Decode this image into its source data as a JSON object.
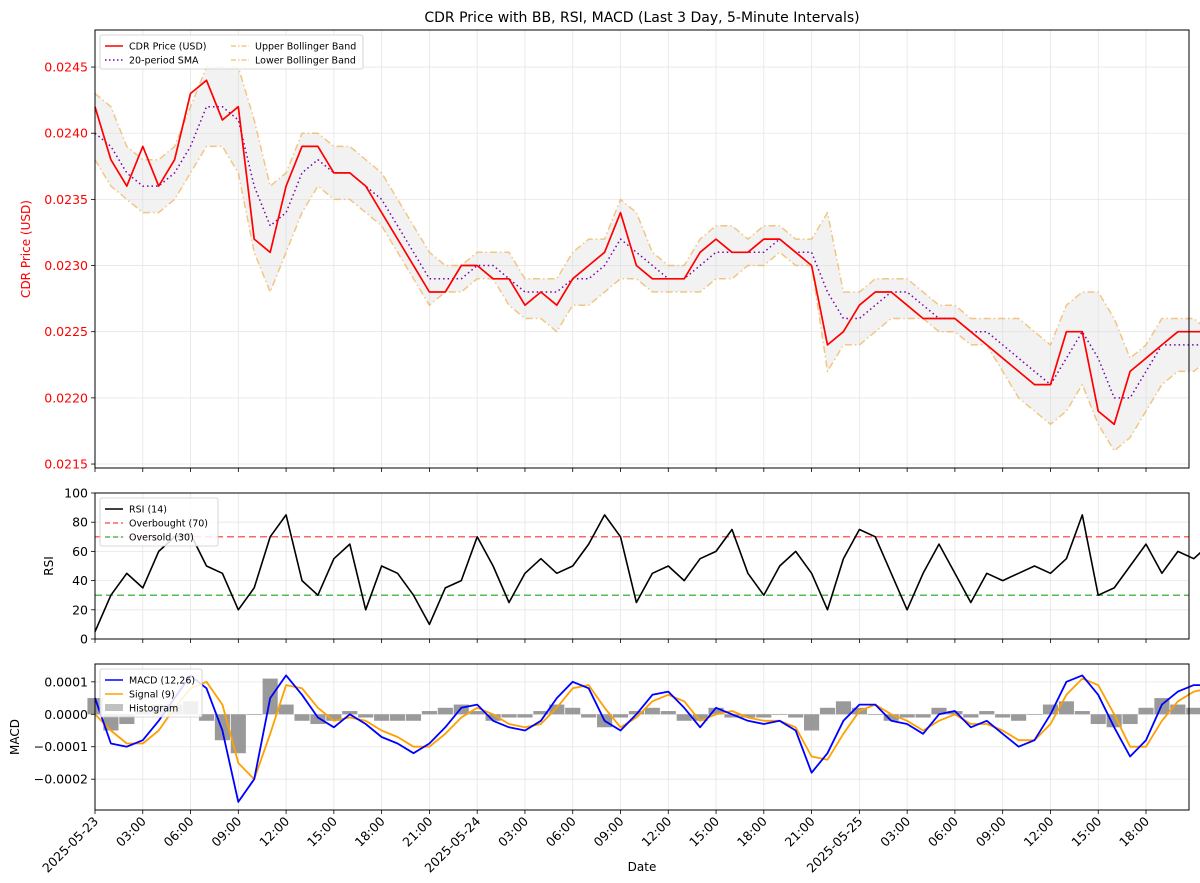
{
  "figure": {
    "title": "CDR Price with BB, RSI, MACD (Last 3 Day, 5-Minute Intervals)",
    "xlabel": "Date"
  },
  "chart_data": [
    {
      "type": "line",
      "panel": "price",
      "ylabel": "CDR Price (USD)",
      "ylim": [
        0.02147,
        0.02478
      ],
      "yticks": [
        "0.0215",
        "0.0220",
        "0.0225",
        "0.0230",
        "0.0235",
        "0.0240",
        "0.0245"
      ],
      "ytick_values": [
        0.0215,
        0.022,
        0.0225,
        0.023,
        0.0235,
        0.024,
        0.0245
      ],
      "ytick_color": "#ff0000",
      "grid": true,
      "legend_position": "top-left",
      "legend": [
        "CDR Price (USD)",
        "20-period SMA",
        "Upper Bollinger Band",
        "Lower Bollinger Band"
      ],
      "x_hours": [
        0,
        1,
        2,
        3,
        4,
        5,
        6,
        7,
        8,
        9,
        10,
        11,
        12,
        13,
        14,
        15,
        16,
        17,
        18,
        19,
        20,
        21,
        22,
        23,
        24,
        25,
        26,
        27,
        28,
        29,
        30,
        31,
        32,
        33,
        34,
        35,
        36,
        37,
        38,
        39,
        40,
        41,
        42,
        43,
        44,
        45,
        46,
        47,
        48,
        49,
        50,
        51,
        52,
        53,
        54,
        55,
        56,
        57,
        58,
        59,
        60,
        61,
        62,
        63,
        64,
        65,
        66,
        67,
        68,
        69,
        70
      ],
      "series": [
        {
          "name": "CDR Price (USD)",
          "color": "#ff0000",
          "style": "solid",
          "values": [
            0.0242,
            0.0238,
            0.0236,
            0.0239,
            0.0236,
            0.0238,
            0.0243,
            0.0244,
            0.0241,
            0.0242,
            0.0232,
            0.0231,
            0.0236,
            0.0239,
            0.0239,
            0.0237,
            0.0237,
            0.0236,
            0.0234,
            0.0232,
            0.023,
            0.0228,
            0.0228,
            0.023,
            0.023,
            0.0229,
            0.0229,
            0.0227,
            0.0228,
            0.0227,
            0.0229,
            0.023,
            0.0231,
            0.0234,
            0.023,
            0.0229,
            0.0229,
            0.0229,
            0.0231,
            0.0232,
            0.0231,
            0.0231,
            0.0232,
            0.0232,
            0.0231,
            0.023,
            0.0224,
            0.0225,
            0.0227,
            0.0228,
            0.0228,
            0.0227,
            0.0226,
            0.0226,
            0.0226,
            0.0225,
            0.0224,
            0.0223,
            0.0222,
            0.0221,
            0.0221,
            0.0225,
            0.0225,
            0.0219,
            0.0218,
            0.0222,
            0.0223,
            0.0224,
            0.0225,
            0.0225,
            0.0225
          ]
        },
        {
          "name": "20-period SMA",
          "color": "#7700aa",
          "style": "dotted",
          "values": [
            0.024,
            0.0239,
            0.0237,
            0.0236,
            0.0236,
            0.0237,
            0.0239,
            0.0242,
            0.0242,
            0.0241,
            0.0236,
            0.0233,
            0.0234,
            0.0237,
            0.0238,
            0.0237,
            0.0237,
            0.0236,
            0.0235,
            0.0233,
            0.0231,
            0.0229,
            0.0229,
            0.0229,
            0.023,
            0.023,
            0.0229,
            0.0228,
            0.0228,
            0.0228,
            0.0229,
            0.0229,
            0.023,
            0.0232,
            0.0231,
            0.023,
            0.0229,
            0.0229,
            0.023,
            0.0231,
            0.0231,
            0.0231,
            0.0231,
            0.0232,
            0.0231,
            0.0231,
            0.0228,
            0.0226,
            0.0226,
            0.0227,
            0.0228,
            0.0228,
            0.0227,
            0.0226,
            0.0226,
            0.0225,
            0.0225,
            0.0224,
            0.0223,
            0.0222,
            0.0221,
            0.0223,
            0.0225,
            0.0223,
            0.022,
            0.022,
            0.0222,
            0.0224,
            0.0224,
            0.0224,
            0.0224
          ]
        },
        {
          "name": "Upper Bollinger Band",
          "color": "#f0b050",
          "style": "dashdot",
          "values": [
            0.0243,
            0.0242,
            0.0239,
            0.0238,
            0.0238,
            0.0239,
            0.0242,
            0.0245,
            0.0245,
            0.0245,
            0.0241,
            0.0236,
            0.0237,
            0.024,
            0.024,
            0.0239,
            0.0239,
            0.0238,
            0.0237,
            0.0235,
            0.0233,
            0.0231,
            0.023,
            0.023,
            0.0231,
            0.0231,
            0.0231,
            0.0229,
            0.0229,
            0.0229,
            0.0231,
            0.0232,
            0.0232,
            0.0235,
            0.0234,
            0.0231,
            0.023,
            0.023,
            0.0232,
            0.0233,
            0.0233,
            0.0232,
            0.0233,
            0.0233,
            0.0232,
            0.0232,
            0.0234,
            0.0228,
            0.0228,
            0.0229,
            0.0229,
            0.0229,
            0.0228,
            0.0227,
            0.0227,
            0.0226,
            0.0226,
            0.0226,
            0.0226,
            0.0225,
            0.0224,
            0.0227,
            0.0228,
            0.0228,
            0.0226,
            0.0223,
            0.0224,
            0.0226,
            0.0226,
            0.0226,
            0.0225
          ]
        },
        {
          "name": "Lower Bollinger Band",
          "color": "#f0b050",
          "style": "dashdot",
          "values": [
            0.0238,
            0.0236,
            0.0235,
            0.0234,
            0.0234,
            0.0235,
            0.0237,
            0.0239,
            0.0239,
            0.0237,
            0.0231,
            0.0228,
            0.0231,
            0.0234,
            0.0236,
            0.0235,
            0.0235,
            0.0234,
            0.0233,
            0.0231,
            0.0229,
            0.0227,
            0.0228,
            0.0228,
            0.0229,
            0.0229,
            0.0227,
            0.0226,
            0.0226,
            0.0225,
            0.0227,
            0.0227,
            0.0228,
            0.0229,
            0.0229,
            0.0228,
            0.0228,
            0.0228,
            0.0228,
            0.0229,
            0.0229,
            0.023,
            0.023,
            0.0231,
            0.023,
            0.023,
            0.0222,
            0.0224,
            0.0224,
            0.0225,
            0.0226,
            0.0226,
            0.0226,
            0.0225,
            0.0225,
            0.0224,
            0.0224,
            0.0222,
            0.022,
            0.0219,
            0.0218,
            0.0219,
            0.0221,
            0.0218,
            0.0216,
            0.0217,
            0.0219,
            0.0221,
            0.0222,
            0.0222,
            0.0223
          ]
        }
      ]
    },
    {
      "type": "line",
      "panel": "rsi",
      "ylabel": "RSI",
      "ylim": [
        0,
        100
      ],
      "yticks": [
        "0",
        "20",
        "40",
        "60",
        "80",
        "100"
      ],
      "ytick_values": [
        0,
        20,
        40,
        60,
        80,
        100
      ],
      "grid": true,
      "legend_position": "top-left",
      "legend": [
        "RSI (14)",
        "Overbought (70)",
        "Oversold (30)"
      ],
      "x_hours": [
        0,
        1,
        2,
        3,
        4,
        5,
        6,
        7,
        8,
        9,
        10,
        11,
        12,
        13,
        14,
        15,
        16,
        17,
        18,
        19,
        20,
        21,
        22,
        23,
        24,
        25,
        26,
        27,
        28,
        29,
        30,
        31,
        32,
        33,
        34,
        35,
        36,
        37,
        38,
        39,
        40,
        41,
        42,
        43,
        44,
        45,
        46,
        47,
        48,
        49,
        50,
        51,
        52,
        53,
        54,
        55,
        56,
        57,
        58,
        59,
        60,
        61,
        62,
        63,
        64,
        65,
        66,
        67,
        68,
        69,
        70
      ],
      "series": [
        {
          "name": "RSI (14)",
          "color": "#000000",
          "style": "solid",
          "values": [
            5,
            30,
            45,
            35,
            60,
            70,
            72,
            50,
            45,
            20,
            35,
            70,
            85,
            40,
            30,
            55,
            65,
            20,
            50,
            45,
            30,
            10,
            35,
            40,
            70,
            50,
            25,
            45,
            55,
            45,
            50,
            65,
            85,
            70,
            25,
            45,
            50,
            40,
            55,
            60,
            75,
            45,
            30,
            50,
            60,
            45,
            20,
            55,
            75,
            70,
            45,
            20,
            45,
            65,
            45,
            25,
            45,
            40,
            45,
            50,
            45,
            55,
            85,
            30,
            35,
            50,
            65,
            45,
            60,
            55,
            65
          ]
        },
        {
          "name": "Overbought (70)",
          "color": "#ff6666",
          "style": "dashed",
          "values": [
            70,
            70
          ]
        },
        {
          "name": "Oversold (30)",
          "color": "#55bb55",
          "style": "dashed",
          "values": [
            30,
            30
          ]
        }
      ]
    },
    {
      "type": "line",
      "panel": "macd",
      "ylabel": "MACD",
      "ylim": [
        -0.000295,
        0.000155
      ],
      "yticks": [
        "−0.0002",
        "−0.0001",
        "0.0000",
        "0.0001"
      ],
      "ytick_values": [
        -0.0002,
        -0.0001,
        0,
        0.0001
      ],
      "grid": true,
      "legend_position": "top-left",
      "legend": [
        "MACD (12,26)",
        "Signal (9)",
        "Histogram"
      ],
      "x_hours": [
        0,
        1,
        2,
        3,
        4,
        5,
        6,
        7,
        8,
        9,
        10,
        11,
        12,
        13,
        14,
        15,
        16,
        17,
        18,
        19,
        20,
        21,
        22,
        23,
        24,
        25,
        26,
        27,
        28,
        29,
        30,
        31,
        32,
        33,
        34,
        35,
        36,
        37,
        38,
        39,
        40,
        41,
        42,
        43,
        44,
        45,
        46,
        47,
        48,
        49,
        50,
        51,
        52,
        53,
        54,
        55,
        56,
        57,
        58,
        59,
        60,
        61,
        62,
        63,
        64,
        65,
        66,
        67,
        68,
        69,
        70
      ],
      "series": [
        {
          "name": "MACD (12,26)",
          "color": "#0000ff",
          "style": "solid",
          "values": [
            5e-05,
            -9e-05,
            -0.0001,
            -8e-05,
            -2e-05,
            5e-05,
            0.00012,
            8e-05,
            -5e-05,
            -0.00027,
            -0.0002,
            5e-05,
            0.00012,
            6e-05,
            -1e-05,
            -4e-05,
            0.0,
            -3e-05,
            -7e-05,
            -9e-05,
            -0.00012,
            -9e-05,
            -4e-05,
            2e-05,
            3e-05,
            -2e-05,
            -4e-05,
            -5e-05,
            -2e-05,
            5e-05,
            0.0001,
            8e-05,
            -2e-05,
            -5e-05,
            0.0,
            6e-05,
            7e-05,
            2e-05,
            -4e-05,
            2e-05,
            0.0,
            -2e-05,
            -3e-05,
            -2e-05,
            -5e-05,
            -0.00018,
            -0.00012,
            -2e-05,
            3e-05,
            3e-05,
            -2e-05,
            -3e-05,
            -6e-05,
            0.0,
            1e-05,
            -4e-05,
            -2e-05,
            -6e-05,
            -0.0001,
            -8e-05,
            0.0,
            0.0001,
            0.00012,
            6e-05,
            -4e-05,
            -0.00013,
            -8e-05,
            3e-05,
            7e-05,
            9e-05,
            9e-05
          ]
        },
        {
          "name": "Signal (9)",
          "color": "#ffa000",
          "style": "solid",
          "values": [
            0.0,
            -5e-05,
            -9e-05,
            -9e-05,
            -5e-05,
            2e-05,
            8e-05,
            0.0001,
            3e-05,
            -0.00015,
            -0.0002,
            -6e-05,
            9e-05,
            8e-05,
            2e-05,
            -2e-05,
            -1e-05,
            -2e-05,
            -5e-05,
            -7e-05,
            -0.0001,
            -0.0001,
            -6e-05,
            -1e-05,
            2e-05,
            0.0,
            -3e-05,
            -4e-05,
            -3e-05,
            2e-05,
            8e-05,
            9e-05,
            2e-05,
            -4e-05,
            -1e-05,
            4e-05,
            6e-05,
            4e-05,
            -2e-05,
            0.0,
            1e-05,
            -1e-05,
            -2e-05,
            -2e-05,
            -4e-05,
            -0.00013,
            -0.00014,
            -6e-05,
            1e-05,
            3e-05,
            0.0,
            -2e-05,
            -5e-05,
            -2e-05,
            0.0,
            -3e-05,
            -3e-05,
            -5e-05,
            -8e-05,
            -8e-05,
            -3e-05,
            6e-05,
            0.00011,
            9e-05,
            0.0,
            -0.0001,
            -0.0001,
            -2e-05,
            4e-05,
            7e-05,
            8e-05
          ]
        },
        {
          "name": "Histogram",
          "color": "#888888",
          "style": "bar",
          "values": [
            5e-05,
            -5e-05,
            -3e-05,
            1e-05,
            3e-05,
            3e-05,
            4e-05,
            -2e-05,
            -8e-05,
            -0.00012,
            0.0,
            0.00011,
            3e-05,
            -2e-05,
            -3e-05,
            -2e-05,
            1e-05,
            -1e-05,
            -2e-05,
            -2e-05,
            -2e-05,
            1e-05,
            2e-05,
            3e-05,
            1e-05,
            -2e-05,
            -1e-05,
            -1e-05,
            1e-05,
            3e-05,
            2e-05,
            -1e-05,
            -4e-05,
            -1e-05,
            1e-05,
            2e-05,
            1e-05,
            -2e-05,
            -2e-05,
            2e-05,
            -1e-05,
            -1e-05,
            -1e-05,
            0.0,
            -1e-05,
            -5e-05,
            2e-05,
            4e-05,
            2e-05,
            0.0,
            -2e-05,
            -1e-05,
            -1e-05,
            2e-05,
            1e-05,
            -1e-05,
            1e-05,
            -1e-05,
            -2e-05,
            0.0,
            3e-05,
            4e-05,
            1e-05,
            -3e-05,
            -4e-05,
            -3e-05,
            2e-05,
            5e-05,
            3e-05,
            2e-05,
            1e-05
          ]
        }
      ]
    }
  ],
  "xaxis": {
    "tick_labels": [
      "2025-05-23",
      "03:00",
      "06:00",
      "09:00",
      "12:00",
      "15:00",
      "18:00",
      "21:00",
      "2025-05-24",
      "03:00",
      "06:00",
      "09:00",
      "12:00",
      "15:00",
      "18:00",
      "21:00",
      "2025-05-25",
      "03:00",
      "06:00",
      "09:00",
      "12:00",
      "15:00",
      "18:00"
    ],
    "tick_hours": [
      0,
      3,
      6,
      9,
      12,
      15,
      18,
      21,
      24,
      27,
      30,
      33,
      36,
      39,
      42,
      45,
      48,
      51,
      54,
      57,
      60,
      63,
      66
    ],
    "range_hours": [
      0,
      68.7
    ]
  }
}
